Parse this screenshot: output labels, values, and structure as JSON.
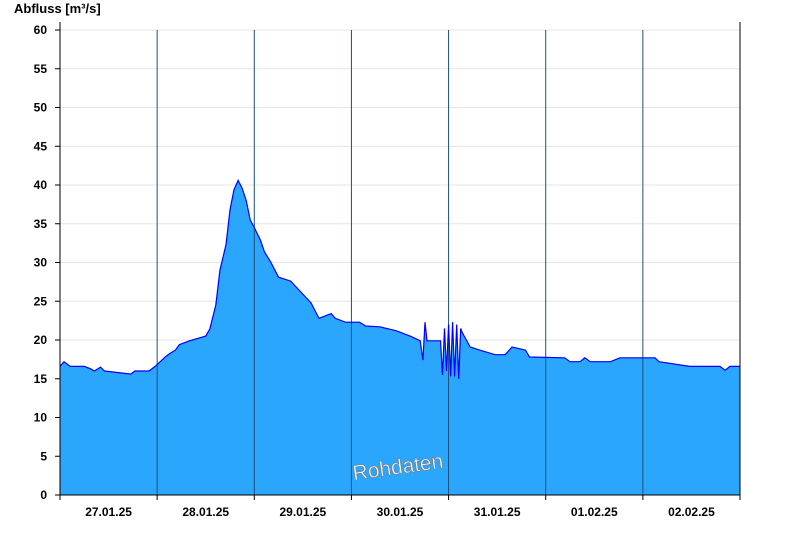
{
  "chart_data": {
    "type": "area",
    "title": "",
    "ylabel": "Abfluss [m³/s]",
    "xlabel": "",
    "ylim": [
      0,
      60
    ],
    "yticks": [
      0,
      5,
      10,
      15,
      20,
      25,
      30,
      35,
      40,
      45,
      50,
      55,
      60
    ],
    "xlim": [
      "2025-01-27T00:00",
      "2025-02-03T00:00"
    ],
    "xtick_labels": [
      "27.01.25",
      "28.01.25",
      "29.01.25",
      "30.01.25",
      "31.01.25",
      "01.02.25",
      "02.02.25"
    ],
    "grid": true,
    "annotation": "Rohdaten",
    "colors": {
      "fill": "#2aa7fd",
      "line": "#0000ff",
      "day_separator": "#1f4f7a"
    },
    "points": [
      [
        "2025-01-27T00:00",
        16.6
      ],
      [
        "2025-01-27T01:00",
        17.2
      ],
      [
        "2025-01-27T02:30",
        16.6
      ],
      [
        "2025-01-27T06:00",
        16.6
      ],
      [
        "2025-01-27T07:30",
        16.3
      ],
      [
        "2025-01-27T08:30",
        16.0
      ],
      [
        "2025-01-27T10:00",
        16.5
      ],
      [
        "2025-01-27T11:00",
        16.0
      ],
      [
        "2025-01-27T17:30",
        15.6
      ],
      [
        "2025-01-27T18:30",
        16.0
      ],
      [
        "2025-01-27T22:00",
        16.0
      ],
      [
        "2025-01-27T23:30",
        16.6
      ],
      [
        "2025-01-28T00:45",
        17.2
      ],
      [
        "2025-01-28T02:00",
        17.8
      ],
      [
        "2025-01-28T03:00",
        18.2
      ],
      [
        "2025-01-28T04:30",
        18.7
      ],
      [
        "2025-01-28T05:30",
        19.4
      ],
      [
        "2025-01-28T08:00",
        19.9
      ],
      [
        "2025-01-28T12:00",
        20.5
      ],
      [
        "2025-01-28T13:00",
        21.4
      ],
      [
        "2025-01-28T14:30",
        24.5
      ],
      [
        "2025-01-28T15:30",
        29.0
      ],
      [
        "2025-01-28T17:00",
        32.3
      ],
      [
        "2025-01-28T18:00",
        36.8
      ],
      [
        "2025-01-28T19:00",
        39.4
      ],
      [
        "2025-01-28T20:00",
        40.6
      ],
      [
        "2025-01-28T21:00",
        39.6
      ],
      [
        "2025-01-28T22:00",
        38.0
      ],
      [
        "2025-01-28T23:00",
        35.5
      ],
      [
        "2025-01-29T00:00",
        34.5
      ],
      [
        "2025-01-29T01:30",
        32.9
      ],
      [
        "2025-01-29T02:30",
        31.4
      ],
      [
        "2025-01-29T04:00",
        30.1
      ],
      [
        "2025-01-29T06:00",
        28.1
      ],
      [
        "2025-01-29T09:00",
        27.6
      ],
      [
        "2025-01-29T11:30",
        26.2
      ],
      [
        "2025-01-29T14:00",
        24.8
      ],
      [
        "2025-01-29T16:00",
        22.8
      ],
      [
        "2025-01-29T19:00",
        23.4
      ],
      [
        "2025-01-29T20:00",
        22.8
      ],
      [
        "2025-01-29T22:30",
        22.3
      ],
      [
        "2025-01-30T02:00",
        22.3
      ],
      [
        "2025-01-30T03:30",
        21.8
      ],
      [
        "2025-01-30T07:00",
        21.7
      ],
      [
        "2025-01-30T11:00",
        21.2
      ],
      [
        "2025-01-30T14:30",
        20.5
      ],
      [
        "2025-01-30T17:00",
        19.9
      ],
      [
        "2025-01-30T17:40",
        17.4
      ],
      [
        "2025-01-30T18:10",
        22.3
      ],
      [
        "2025-01-30T18:40",
        19.9
      ],
      [
        "2025-01-30T22:00",
        19.9
      ],
      [
        "2025-01-30T22:30",
        15.5
      ],
      [
        "2025-01-30T23:00",
        21.5
      ],
      [
        "2025-01-30T23:30",
        16.0
      ],
      [
        "2025-01-31T00:00",
        22.0
      ],
      [
        "2025-01-31T00:30",
        15.3
      ],
      [
        "2025-01-31T01:00",
        22.3
      ],
      [
        "2025-01-31T01:30",
        15.3
      ],
      [
        "2025-01-31T02:00",
        22.0
      ],
      [
        "2025-01-31T02:30",
        15.0
      ],
      [
        "2025-01-31T03:00",
        21.5
      ],
      [
        "2025-01-31T03:20",
        21.0
      ],
      [
        "2025-01-31T05:20",
        19.1
      ],
      [
        "2025-01-31T07:40",
        18.7
      ],
      [
        "2025-01-31T11:30",
        18.1
      ],
      [
        "2025-01-31T14:00",
        18.1
      ],
      [
        "2025-01-31T15:40",
        19.1
      ],
      [
        "2025-01-31T19:00",
        18.7
      ],
      [
        "2025-01-31T20:00",
        17.8
      ],
      [
        "2025-02-01T04:40",
        17.7
      ],
      [
        "2025-02-01T06:00",
        17.2
      ],
      [
        "2025-02-01T08:30",
        17.2
      ],
      [
        "2025-02-01T09:40",
        17.7
      ],
      [
        "2025-02-01T11:00",
        17.2
      ],
      [
        "2025-02-01T16:00",
        17.2
      ],
      [
        "2025-02-01T18:20",
        17.7
      ],
      [
        "2025-02-02T03:00",
        17.7
      ],
      [
        "2025-02-02T04:00",
        17.2
      ],
      [
        "2025-02-02T11:36",
        16.6
      ],
      [
        "2025-02-02T19:00",
        16.6
      ],
      [
        "2025-02-02T20:20",
        16.1
      ],
      [
        "2025-02-02T21:30",
        16.6
      ],
      [
        "2025-02-03T00:00",
        16.6
      ]
    ]
  }
}
